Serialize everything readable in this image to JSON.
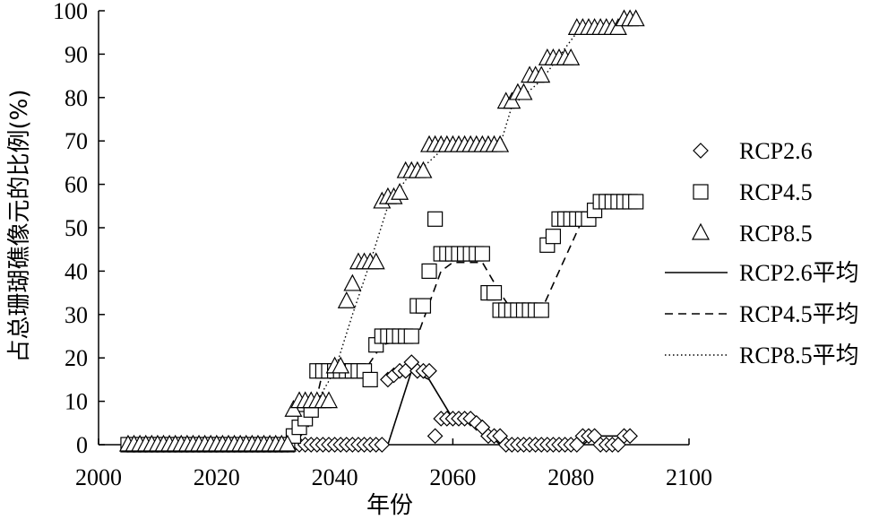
{
  "chart_data": {
    "type": "scatter",
    "xlabel": "年份",
    "ylabel": "占总珊瑚礁像元的比例(%)",
    "xlim": [
      2000,
      2100
    ],
    "ylim": [
      0,
      100
    ],
    "xticks": [
      2000,
      2020,
      2040,
      2060,
      2080,
      2100
    ],
    "yticks": [
      0,
      10,
      20,
      30,
      40,
      50,
      60,
      70,
      80,
      90,
      100
    ],
    "legend_position": "right",
    "series": [
      {
        "name": "RCP2.6",
        "kind": "points",
        "marker": "diamond",
        "points": [
          [
            2005,
            0
          ],
          [
            2006,
            0
          ],
          [
            2007,
            0
          ],
          [
            2008,
            0
          ],
          [
            2009,
            0
          ],
          [
            2010,
            0
          ],
          [
            2011,
            0
          ],
          [
            2012,
            0
          ],
          [
            2013,
            0
          ],
          [
            2014,
            0
          ],
          [
            2015,
            0
          ],
          [
            2016,
            0
          ],
          [
            2017,
            0
          ],
          [
            2018,
            0
          ],
          [
            2019,
            0
          ],
          [
            2020,
            0
          ],
          [
            2021,
            0
          ],
          [
            2022,
            0
          ],
          [
            2023,
            0
          ],
          [
            2024,
            0
          ],
          [
            2025,
            0
          ],
          [
            2026,
            0
          ],
          [
            2027,
            0
          ],
          [
            2028,
            0
          ],
          [
            2029,
            0
          ],
          [
            2030,
            0
          ],
          [
            2031,
            0
          ],
          [
            2032,
            0
          ],
          [
            2033,
            0
          ],
          [
            2034,
            0
          ],
          [
            2035,
            0
          ],
          [
            2036,
            0
          ],
          [
            2037,
            0
          ],
          [
            2038,
            0
          ],
          [
            2039,
            0
          ],
          [
            2040,
            0
          ],
          [
            2041,
            0
          ],
          [
            2042,
            0
          ],
          [
            2043,
            0
          ],
          [
            2044,
            0
          ],
          [
            2045,
            0
          ],
          [
            2046,
            0
          ],
          [
            2047,
            0
          ],
          [
            2048,
            0
          ],
          [
            2049,
            15
          ],
          [
            2050,
            16
          ],
          [
            2051,
            17
          ],
          [
            2052,
            17
          ],
          [
            2053,
            19
          ],
          [
            2054,
            17
          ],
          [
            2055,
            17
          ],
          [
            2056,
            17
          ],
          [
            2057,
            2
          ],
          [
            2058,
            6
          ],
          [
            2059,
            6
          ],
          [
            2060,
            6
          ],
          [
            2061,
            6
          ],
          [
            2062,
            6
          ],
          [
            2063,
            6
          ],
          [
            2064,
            5
          ],
          [
            2065,
            4
          ],
          [
            2066,
            2
          ],
          [
            2067,
            2
          ],
          [
            2068,
            2
          ],
          [
            2069,
            0
          ],
          [
            2070,
            0
          ],
          [
            2071,
            0
          ],
          [
            2072,
            0
          ],
          [
            2073,
            0
          ],
          [
            2074,
            0
          ],
          [
            2075,
            0
          ],
          [
            2076,
            0
          ],
          [
            2077,
            0
          ],
          [
            2078,
            0
          ],
          [
            2079,
            0
          ],
          [
            2080,
            0
          ],
          [
            2081,
            0
          ],
          [
            2082,
            2
          ],
          [
            2083,
            2
          ],
          [
            2084,
            2
          ],
          [
            2085,
            0
          ],
          [
            2086,
            0
          ],
          [
            2087,
            0
          ],
          [
            2088,
            0
          ],
          [
            2089,
            2
          ],
          [
            2090,
            2
          ]
        ]
      },
      {
        "name": "RCP4.5",
        "kind": "points",
        "marker": "square",
        "points": [
          [
            2005,
            0
          ],
          [
            2006,
            0
          ],
          [
            2007,
            0
          ],
          [
            2008,
            0
          ],
          [
            2009,
            0
          ],
          [
            2010,
            0
          ],
          [
            2011,
            0
          ],
          [
            2012,
            0
          ],
          [
            2013,
            0
          ],
          [
            2014,
            0
          ],
          [
            2015,
            0
          ],
          [
            2016,
            0
          ],
          [
            2017,
            0
          ],
          [
            2018,
            0
          ],
          [
            2019,
            0
          ],
          [
            2020,
            0
          ],
          [
            2021,
            0
          ],
          [
            2022,
            0
          ],
          [
            2023,
            0
          ],
          [
            2024,
            0
          ],
          [
            2025,
            0
          ],
          [
            2026,
            0
          ],
          [
            2027,
            0
          ],
          [
            2028,
            0
          ],
          [
            2029,
            0
          ],
          [
            2030,
            0
          ],
          [
            2031,
            0
          ],
          [
            2032,
            0
          ],
          [
            2033,
            2
          ],
          [
            2034,
            4
          ],
          [
            2035,
            6
          ],
          [
            2036,
            8
          ],
          [
            2037,
            17
          ],
          [
            2038,
            17
          ],
          [
            2039,
            17
          ],
          [
            2040,
            17
          ],
          [
            2041,
            17
          ],
          [
            2042,
            17
          ],
          [
            2043,
            17
          ],
          [
            2044,
            17
          ],
          [
            2045,
            17
          ],
          [
            2046,
            15
          ],
          [
            2047,
            23
          ],
          [
            2048,
            25
          ],
          [
            2049,
            25
          ],
          [
            2050,
            25
          ],
          [
            2051,
            25
          ],
          [
            2052,
            25
          ],
          [
            2053,
            25
          ],
          [
            2054,
            32
          ],
          [
            2055,
            32
          ],
          [
            2056,
            40
          ],
          [
            2057,
            52
          ],
          [
            2058,
            44
          ],
          [
            2059,
            44
          ],
          [
            2060,
            44
          ],
          [
            2061,
            44
          ],
          [
            2062,
            44
          ],
          [
            2063,
            44
          ],
          [
            2064,
            44
          ],
          [
            2065,
            44
          ],
          [
            2066,
            35
          ],
          [
            2067,
            35
          ],
          [
            2068,
            31
          ],
          [
            2069,
            31
          ],
          [
            2070,
            31
          ],
          [
            2071,
            31
          ],
          [
            2072,
            31
          ],
          [
            2073,
            31
          ],
          [
            2074,
            31
          ],
          [
            2075,
            31
          ],
          [
            2076,
            46
          ],
          [
            2077,
            48
          ],
          [
            2078,
            52
          ],
          [
            2079,
            52
          ],
          [
            2080,
            52
          ],
          [
            2081,
            52
          ],
          [
            2082,
            52
          ],
          [
            2083,
            52
          ],
          [
            2084,
            54
          ],
          [
            2085,
            56
          ],
          [
            2086,
            56
          ],
          [
            2087,
            56
          ],
          [
            2088,
            56
          ],
          [
            2089,
            56
          ],
          [
            2090,
            56
          ],
          [
            2091,
            56
          ]
        ]
      },
      {
        "name": "RCP8.5",
        "kind": "points",
        "marker": "triangle",
        "points": [
          [
            2005,
            0
          ],
          [
            2006,
            0
          ],
          [
            2007,
            0
          ],
          [
            2008,
            0
          ],
          [
            2009,
            0
          ],
          [
            2010,
            0
          ],
          [
            2011,
            0
          ],
          [
            2012,
            0
          ],
          [
            2013,
            0
          ],
          [
            2014,
            0
          ],
          [
            2015,
            0
          ],
          [
            2016,
            0
          ],
          [
            2017,
            0
          ],
          [
            2018,
            0
          ],
          [
            2019,
            0
          ],
          [
            2020,
            0
          ],
          [
            2021,
            0
          ],
          [
            2022,
            0
          ],
          [
            2023,
            0
          ],
          [
            2024,
            0
          ],
          [
            2025,
            0
          ],
          [
            2026,
            0
          ],
          [
            2027,
            0
          ],
          [
            2028,
            0
          ],
          [
            2029,
            0
          ],
          [
            2030,
            0
          ],
          [
            2031,
            0
          ],
          [
            2032,
            0
          ],
          [
            2033,
            8
          ],
          [
            2034,
            10
          ],
          [
            2035,
            10
          ],
          [
            2036,
            10
          ],
          [
            2037,
            10
          ],
          [
            2038,
            10
          ],
          [
            2039,
            10
          ],
          [
            2040,
            18
          ],
          [
            2041,
            18
          ],
          [
            2042,
            33
          ],
          [
            2043,
            37
          ],
          [
            2044,
            42
          ],
          [
            2045,
            42
          ],
          [
            2046,
            42
          ],
          [
            2047,
            42
          ],
          [
            2048,
            56
          ],
          [
            2049,
            57
          ],
          [
            2050,
            57
          ],
          [
            2051,
            58
          ],
          [
            2052,
            63
          ],
          [
            2053,
            63
          ],
          [
            2054,
            63
          ],
          [
            2055,
            63
          ],
          [
            2056,
            69
          ],
          [
            2057,
            69
          ],
          [
            2058,
            69
          ],
          [
            2059,
            69
          ],
          [
            2060,
            69
          ],
          [
            2061,
            69
          ],
          [
            2062,
            69
          ],
          [
            2063,
            69
          ],
          [
            2064,
            69
          ],
          [
            2065,
            69
          ],
          [
            2066,
            69
          ],
          [
            2067,
            69
          ],
          [
            2068,
            69
          ],
          [
            2069,
            79
          ],
          [
            2070,
            79
          ],
          [
            2071,
            81
          ],
          [
            2072,
            81
          ],
          [
            2073,
            85
          ],
          [
            2074,
            85
          ],
          [
            2075,
            85
          ],
          [
            2076,
            89
          ],
          [
            2077,
            89
          ],
          [
            2078,
            89
          ],
          [
            2079,
            89
          ],
          [
            2080,
            89
          ],
          [
            2081,
            96
          ],
          [
            2082,
            96
          ],
          [
            2083,
            96
          ],
          [
            2084,
            96
          ],
          [
            2085,
            96
          ],
          [
            2086,
            96
          ],
          [
            2087,
            96
          ],
          [
            2088,
            96
          ],
          [
            2089,
            98
          ],
          [
            2090,
            98
          ],
          [
            2091,
            98
          ]
        ]
      },
      {
        "name": "RCP2.6平均",
        "kind": "line",
        "style": "solid",
        "points": [
          [
            2005,
            0
          ],
          [
            2049,
            0
          ],
          [
            2053,
            17
          ],
          [
            2056,
            15
          ],
          [
            2060,
            6
          ],
          [
            2064,
            5
          ],
          [
            2068,
            0
          ],
          [
            2082,
            0
          ],
          [
            2084,
            2
          ],
          [
            2091,
            2
          ]
        ]
      },
      {
        "name": "RCP4.5平均",
        "kind": "line",
        "style": "dashed",
        "points": [
          [
            2005,
            0
          ],
          [
            2033,
            0
          ],
          [
            2036,
            5
          ],
          [
            2038,
            17
          ],
          [
            2045,
            17
          ],
          [
            2048,
            23
          ],
          [
            2054,
            25
          ],
          [
            2058,
            40
          ],
          [
            2060,
            42
          ],
          [
            2065,
            42
          ],
          [
            2068,
            35
          ],
          [
            2070,
            31
          ],
          [
            2075,
            31
          ],
          [
            2078,
            40
          ],
          [
            2082,
            52
          ],
          [
            2085,
            55
          ],
          [
            2091,
            56
          ]
        ]
      },
      {
        "name": "RCP8.5平均",
        "kind": "line",
        "style": "dotted",
        "points": [
          [
            2005,
            0
          ],
          [
            2032,
            0
          ],
          [
            2034,
            5
          ],
          [
            2037,
            10
          ],
          [
            2040,
            17
          ],
          [
            2043,
            30
          ],
          [
            2046,
            42
          ],
          [
            2049,
            55
          ],
          [
            2052,
            61
          ],
          [
            2055,
            64
          ],
          [
            2059,
            69
          ],
          [
            2068,
            69
          ],
          [
            2070,
            78
          ],
          [
            2075,
            84
          ],
          [
            2081,
            95
          ],
          [
            2086,
            96
          ],
          [
            2091,
            98
          ]
        ]
      }
    ]
  }
}
